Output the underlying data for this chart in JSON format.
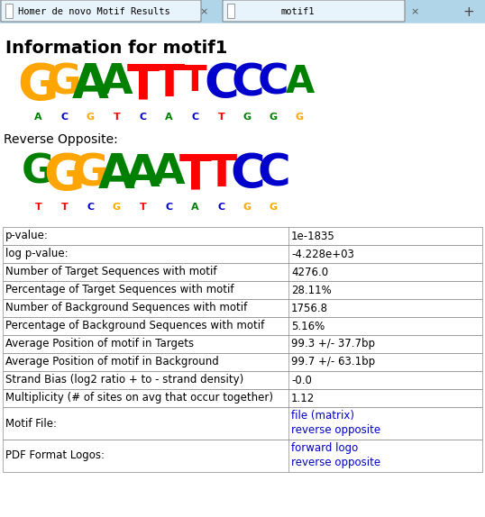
{
  "title": "Information for motif1",
  "browser_tab1": "Homer de novo Motif Results",
  "browser_tab2": "motif1",
  "reverse_label": "Reverse Opposite:",
  "table_rows": [
    [
      "p-value:",
      "1e-1835"
    ],
    [
      "log p-value:",
      "-4.228e+03"
    ],
    [
      "Number of Target Sequences with motif",
      "4276.0"
    ],
    [
      "Percentage of Target Sequences with motif",
      "28.11%"
    ],
    [
      "Number of Background Sequences with motif",
      "1756.8"
    ],
    [
      "Percentage of Background Sequences with motif",
      "5.16%"
    ],
    [
      "Average Position of motif in Targets",
      "99.3 +/- 37.7bp"
    ],
    [
      "Average Position of motif in Background",
      "99.7 +/- 63.1bp"
    ],
    [
      "Strand Bias (log2 ratio + to - strand density)",
      "-0.0"
    ],
    [
      "Multiplicity (# of sites on avg that occur together)",
      "1.12"
    ]
  ],
  "motif_file_label": "Motif File:",
  "motif_file_links": [
    "file (matrix)",
    "reverse opposite"
  ],
  "pdf_label": "PDF Format Logos:",
  "pdf_links": [
    "forward logo",
    "reverse opposite"
  ],
  "bg_color": "#ffffff",
  "tab_bar_color": "#b0d4e8",
  "tab_text_color": "#000000",
  "title_color": "#000000",
  "table_border_color": "#888888",
  "link_color": "#0000cc",
  "logo1": {
    "letters": [
      "G",
      "G",
      "A",
      "A",
      "T",
      "T",
      "T",
      "C",
      "C",
      "C",
      "A"
    ],
    "colors": [
      "#ffa500",
      "#ffa500",
      "#008000",
      "#008000",
      "#ff0000",
      "#ff0000",
      "#ff0000",
      "#0000cc",
      "#0000cc",
      "#0000cc",
      "#008000"
    ],
    "sizes": [
      1.0,
      0.85,
      0.95,
      0.85,
      0.95,
      0.9,
      0.7,
      0.95,
      0.9,
      0.85,
      0.75
    ],
    "small_letters": [
      "A",
      "C",
      "G",
      "T",
      "C",
      "A",
      "C",
      "T",
      "G",
      "G",
      "G"
    ],
    "small_colors": [
      "#008000",
      "#0000cc",
      "#ffa500",
      "#ff0000",
      "#0000cc",
      "#008000",
      "#0000cc",
      "#ff0000",
      "#008000",
      "#008000",
      "#ffa500"
    ]
  },
  "logo2": {
    "letters": [
      "G",
      "G",
      "G",
      "A",
      "A",
      "A",
      "T",
      "T",
      "C",
      "C"
    ],
    "colors": [
      "#008000",
      "#ffa500",
      "#ffa500",
      "#008000",
      "#008000",
      "#008000",
      "#ff0000",
      "#ff0000",
      "#0000cc",
      "#0000cc"
    ],
    "sizes": [
      0.8,
      1.0,
      0.9,
      0.95,
      0.9,
      0.85,
      0.95,
      0.9,
      0.95,
      0.9
    ],
    "small_letters": [
      "T",
      "T",
      "C",
      "G",
      "T",
      "C",
      "A",
      "C",
      "G",
      "G"
    ],
    "small_colors": [
      "#ff0000",
      "#ff0000",
      "#0000cc",
      "#ffa500",
      "#ff0000",
      "#0000cc",
      "#008000",
      "#0000cc",
      "#ffa500",
      "#ffa500"
    ]
  }
}
